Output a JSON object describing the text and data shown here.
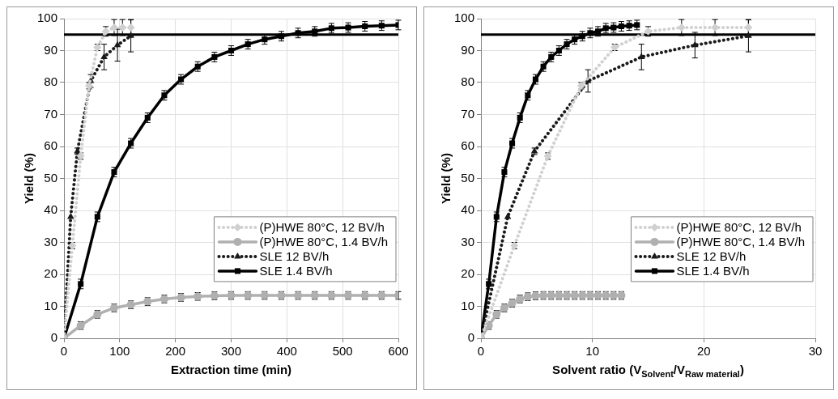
{
  "chart_data": [
    {
      "type": "line",
      "xlabel": "Extraction time (min)",
      "ylabel": "Yield (%)",
      "xlim": [
        0,
        600
      ],
      "xticks": [
        0,
        100,
        200,
        300,
        400,
        500,
        600
      ],
      "ylim": [
        0,
        100
      ],
      "yticks": [
        0,
        10,
        20,
        30,
        40,
        50,
        60,
        70,
        80,
        90,
        100
      ],
      "grid": true,
      "legend": "right",
      "ref_lines": [
        {
          "axis": "y",
          "value": 95,
          "color": "#000000"
        }
      ],
      "series": [
        {
          "name": "(P)HWE 80°C, 12 BV/h",
          "color": "#d0d0d0",
          "marker": "diamond",
          "line_style": "dotted",
          "x": [
            0,
            15,
            30,
            45,
            60,
            75,
            90,
            105,
            120
          ],
          "values": [
            0,
            29,
            57,
            79,
            91,
            96,
            97.2,
            97.2,
            97.2
          ],
          "errors": [
            null,
            1,
            1,
            1,
            1,
            1.5,
            2.5,
            2.5,
            2.5
          ]
        },
        {
          "name": "(P)HWE 80°C, 1.4 BV/h",
          "color": "#b0b0b0",
          "marker": "circle",
          "line_style": "solid",
          "x": [
            0,
            30,
            60,
            90,
            120,
            150,
            180,
            210,
            240,
            270,
            300,
            330,
            360,
            390,
            420,
            450,
            480,
            510,
            540,
            570,
            600
          ],
          "values": [
            0,
            4,
            7.5,
            9.5,
            10.5,
            11.5,
            12.3,
            12.8,
            13.1,
            13.3,
            13.4,
            13.4,
            13.4,
            13.4,
            13.4,
            13.4,
            13.4,
            13.4,
            13.4,
            13.4,
            13.4
          ],
          "errors": [
            null,
            1.2,
            1.2,
            1.2,
            1.2,
            1.2,
            1.2,
            1.2,
            1.2,
            1.2,
            1.2,
            1.2,
            1.2,
            1.2,
            1.2,
            1.2,
            1.2,
            1.2,
            1.2,
            1.2,
            1.2
          ]
        },
        {
          "name": "SLE 12 BV/h",
          "color": "#1a1a1a",
          "marker": "triangle",
          "line_style": "dotted",
          "x": [
            0,
            12,
            24,
            48,
            72,
            96,
            120
          ],
          "values": [
            0,
            38,
            58.5,
            80.5,
            88,
            91.7,
            94.6
          ],
          "errors": [
            null,
            null,
            1,
            2,
            4,
            5,
            5
          ]
        },
        {
          "name": "SLE 1.4 BV/h",
          "color": "#000000",
          "marker": "square",
          "line_style": "solid",
          "x": [
            0,
            30,
            60,
            90,
            120,
            150,
            180,
            210,
            240,
            270,
            300,
            330,
            360,
            390,
            420,
            450,
            480,
            510,
            540,
            570,
            600
          ],
          "values": [
            0,
            17,
            38,
            52,
            61,
            69,
            76,
            81,
            85,
            88,
            90,
            92,
            93.5,
            94.5,
            95.5,
            96,
            97,
            97.2,
            97.6,
            97.8,
            98
          ],
          "errors": [
            null,
            1.5,
            1.5,
            1.5,
            1.5,
            1.5,
            1.5,
            1.5,
            1.5,
            1.5,
            1.5,
            1.5,
            1.5,
            1.5,
            1.5,
            1.5,
            1.5,
            1.5,
            1.5,
            1.5,
            1.5
          ]
        }
      ]
    },
    {
      "type": "line",
      "xlabel": "Solvent ratio (V$_{Solvent}$/V$_{Raw material}$)",
      "ylabel": "Yield (%)",
      "xlim": [
        0,
        30
      ],
      "xticks": [
        0,
        10,
        20,
        30
      ],
      "ylim": [
        0,
        100
      ],
      "yticks": [
        0,
        10,
        20,
        30,
        40,
        50,
        60,
        70,
        80,
        90,
        100
      ],
      "grid": true,
      "legend": "right",
      "ref_lines": [
        {
          "axis": "y",
          "value": 95,
          "color": "#000000"
        }
      ],
      "series": [
        {
          "name": "(P)HWE 80°C, 12 BV/h",
          "color": "#d0d0d0",
          "marker": "diamond",
          "line_style": "dotted",
          "x": [
            0,
            3,
            6,
            9,
            12,
            15,
            18,
            21,
            24
          ],
          "values": [
            0,
            29,
            57,
            79,
            91,
            96,
            97.2,
            97.2,
            97.2
          ],
          "errors": [
            null,
            1,
            1,
            1,
            1,
            1.5,
            2.5,
            2.5,
            2.5
          ]
        },
        {
          "name": "(P)HWE 80°C, 1.4 BV/h",
          "color": "#b0b0b0",
          "marker": "circle",
          "line_style": "solid",
          "x": [
            0,
            0.7,
            1.4,
            2.1,
            2.8,
            3.5,
            4.2,
            4.9,
            5.6,
            6.3,
            7,
            7.7,
            8.4,
            9.1,
            9.8,
            10.5,
            11.2,
            11.9,
            12.6
          ],
          "values": [
            0,
            4,
            7.5,
            9.5,
            11,
            12.3,
            13,
            13.3,
            13.4,
            13.4,
            13.4,
            13.4,
            13.4,
            13.4,
            13.4,
            13.4,
            13.4,
            13.4,
            13.4
          ],
          "errors": [
            null,
            1.2,
            1.2,
            1.2,
            1.2,
            1.2,
            1.2,
            1.2,
            1.2,
            1.2,
            1.2,
            1.2,
            1.2,
            1.2,
            1.2,
            1.2,
            1.2,
            1.2,
            1.2
          ]
        },
        {
          "name": "SLE 12 BV/h",
          "color": "#1a1a1a",
          "marker": "triangle",
          "line_style": "dotted",
          "x": [
            0,
            2.4,
            4.8,
            9.6,
            14.4,
            19.2,
            24
          ],
          "values": [
            0,
            38,
            58.5,
            80.5,
            88,
            91.7,
            94.6
          ],
          "errors": [
            null,
            null,
            1,
            3.5,
            4,
            4,
            5
          ]
        },
        {
          "name": "SLE 1.4 BV/h",
          "color": "#000000",
          "marker": "square",
          "line_style": "solid",
          "x": [
            0,
            0.7,
            1.4,
            2.1,
            2.8,
            3.5,
            4.2,
            4.9,
            5.6,
            6.3,
            7,
            7.7,
            8.4,
            9.1,
            9.8,
            10.5,
            11.2,
            11.9,
            12.6,
            13.3,
            14
          ],
          "values": [
            0,
            17,
            38,
            52,
            61,
            69,
            76,
            81,
            85,
            88,
            90,
            92,
            93.5,
            94.5,
            95.5,
            96,
            97,
            97.2,
            97.6,
            97.8,
            98
          ],
          "errors": [
            null,
            1.5,
            1.5,
            1.5,
            1.5,
            1.5,
            1.5,
            1.5,
            1.5,
            1.5,
            1.5,
            1.5,
            1.5,
            1.5,
            1.5,
            1.5,
            1.5,
            1.5,
            1.5,
            1.5,
            1.5
          ]
        }
      ]
    }
  ]
}
